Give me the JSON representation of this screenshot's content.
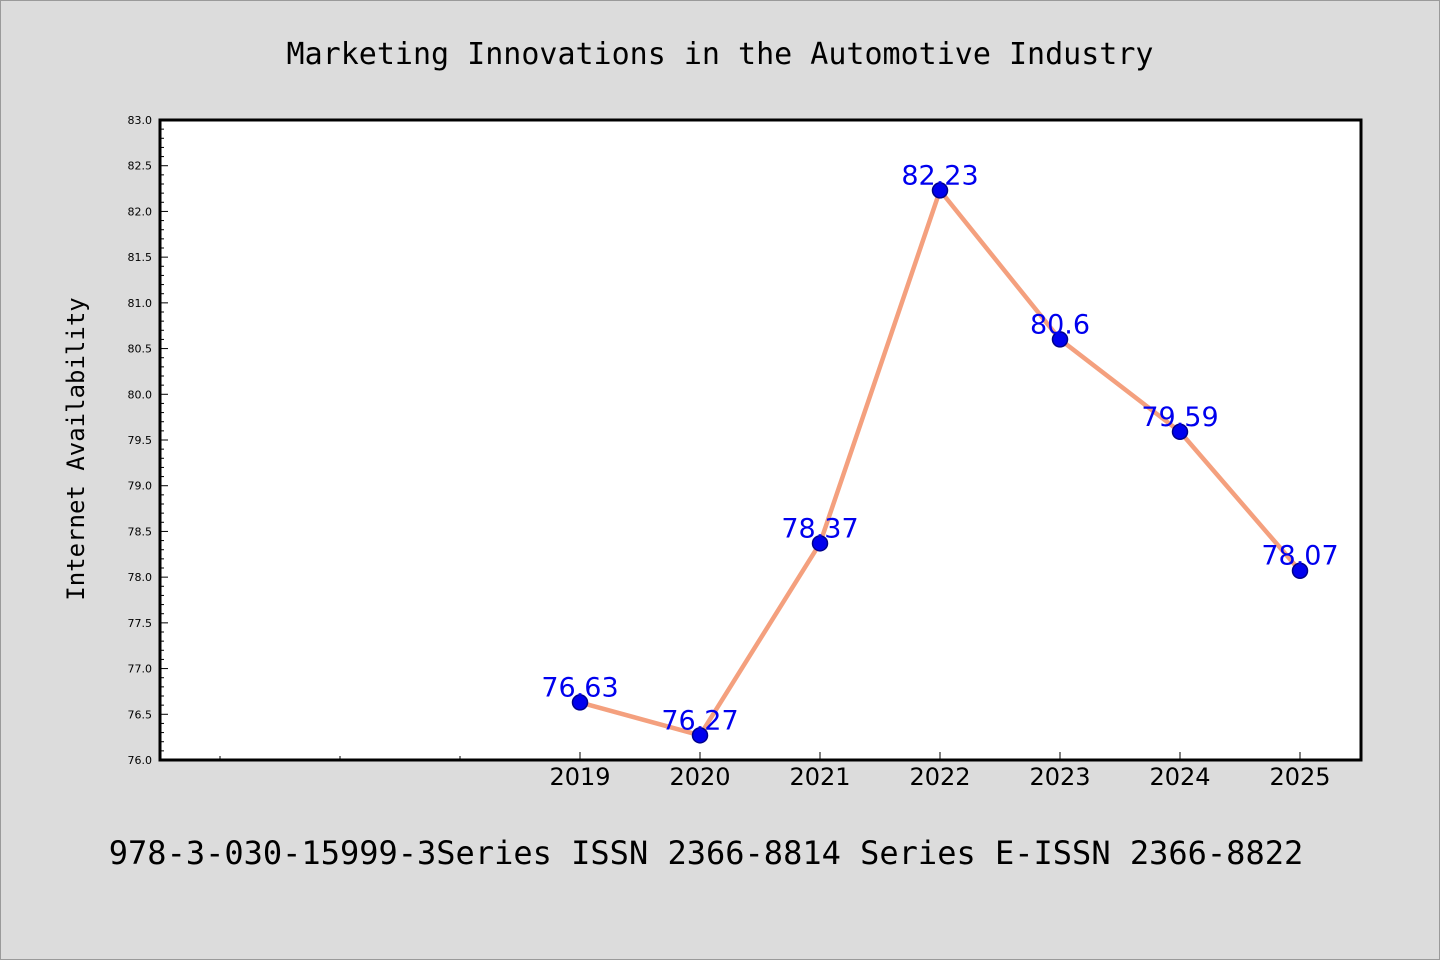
{
  "chart_data": {
    "type": "line",
    "title": "Marketing Innovations in the Automotive Industry",
    "ylabel": "Internet Availability",
    "xlabel": "",
    "x": [
      "2019",
      "2020",
      "2021",
      "2022",
      "2023",
      "2024",
      "2025"
    ],
    "series": [
      {
        "values": [
          76.63,
          76.27,
          78.37,
          82.23,
          80.6,
          79.59,
          78.07
        ]
      }
    ],
    "data_labels": [
      "76.63",
      "76.27",
      "78.37",
      "82.23",
      "80.6",
      "79.59",
      "78.07"
    ],
    "ylim": [
      76.0,
      83.0
    ],
    "yticks": [
      "76.0",
      "76.5",
      "77.0",
      "77.5",
      "78.0",
      "78.5",
      "79.0",
      "79.5",
      "80.0",
      "80.5",
      "81.0",
      "81.5",
      "82.0",
      "82.5",
      "83.0"
    ],
    "grid": false,
    "colors": {
      "line": "#f4a07e",
      "marker": "#0000ee",
      "label": "#0000ee",
      "background": "#dcdcdc",
      "plot_background": "#ffffff"
    }
  },
  "footer": "978-3-030-15999-3Series ISSN 2366-8814 Series E-ISSN 2366-8822"
}
